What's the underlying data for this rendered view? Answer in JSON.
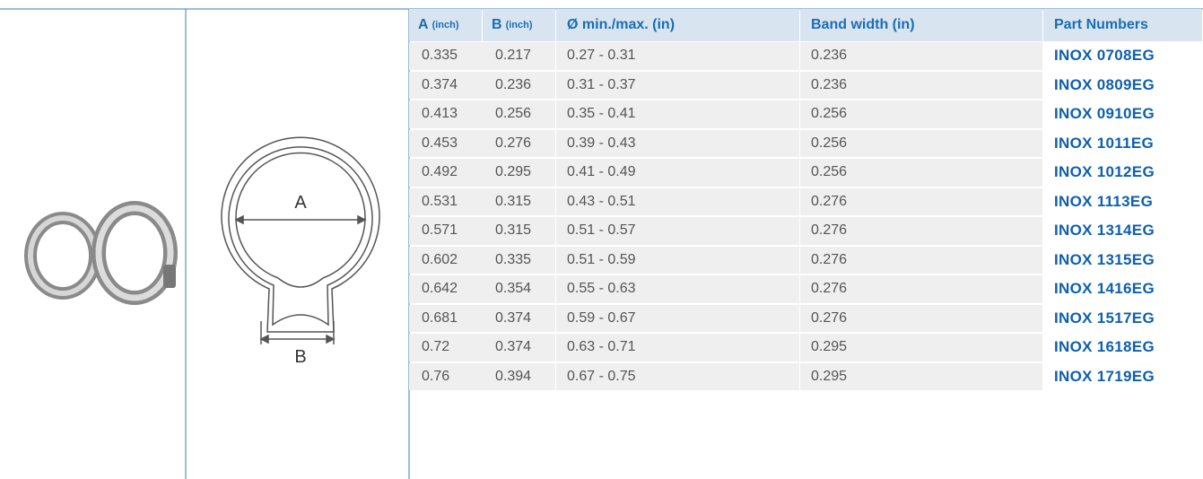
{
  "diagram": {
    "label_a": "A",
    "label_b": "B"
  },
  "table": {
    "header": [
      {
        "main": "A",
        "unit": "(inch)"
      },
      {
        "main": "B",
        "unit": "(inch)"
      },
      {
        "main": "Ø min./max. (in)"
      },
      {
        "main": "Band width (in)"
      },
      {
        "main": "Part Numbers"
      }
    ],
    "rows": [
      [
        "0.335",
        "0.217",
        "0.27 - 0.31",
        "0.236",
        "INOX 0708EG"
      ],
      [
        "0.374",
        "0.236",
        "0.31 - 0.37",
        "0.236",
        "INOX 0809EG"
      ],
      [
        "0.413",
        "0.256",
        "0.35 - 0.41",
        "0.256",
        "INOX 0910EG"
      ],
      [
        "0.453",
        "0.276",
        "0.39 - 0.43",
        "0.256",
        "INOX 1011EG"
      ],
      [
        "0.492",
        "0.295",
        "0.41 - 0.49",
        "0.256",
        "INOX 1012EG"
      ],
      [
        "0.531",
        "0.315",
        "0.43 - 0.51",
        "0.276",
        "INOX 1113EG"
      ],
      [
        "0.571",
        "0.315",
        "0.51 - 0.57",
        "0.276",
        "INOX 1314EG"
      ],
      [
        "0.602",
        "0.335",
        "0.51 - 0.59",
        "0.276",
        "INOX 1315EG"
      ],
      [
        "0.642",
        "0.354",
        "0.55 - 0.63",
        "0.276",
        "INOX 1416EG"
      ],
      [
        "0.681",
        "0.374",
        "0.59 - 0.67",
        "0.276",
        "INOX 1517EG"
      ],
      [
        "0.72",
        "0.374",
        "0.63 - 0.71",
        "0.295",
        "INOX 1618EG"
      ],
      [
        "0.76",
        "0.394",
        "0.67 - 0.75",
        "0.295",
        "INOX 1719EG"
      ]
    ]
  }
}
